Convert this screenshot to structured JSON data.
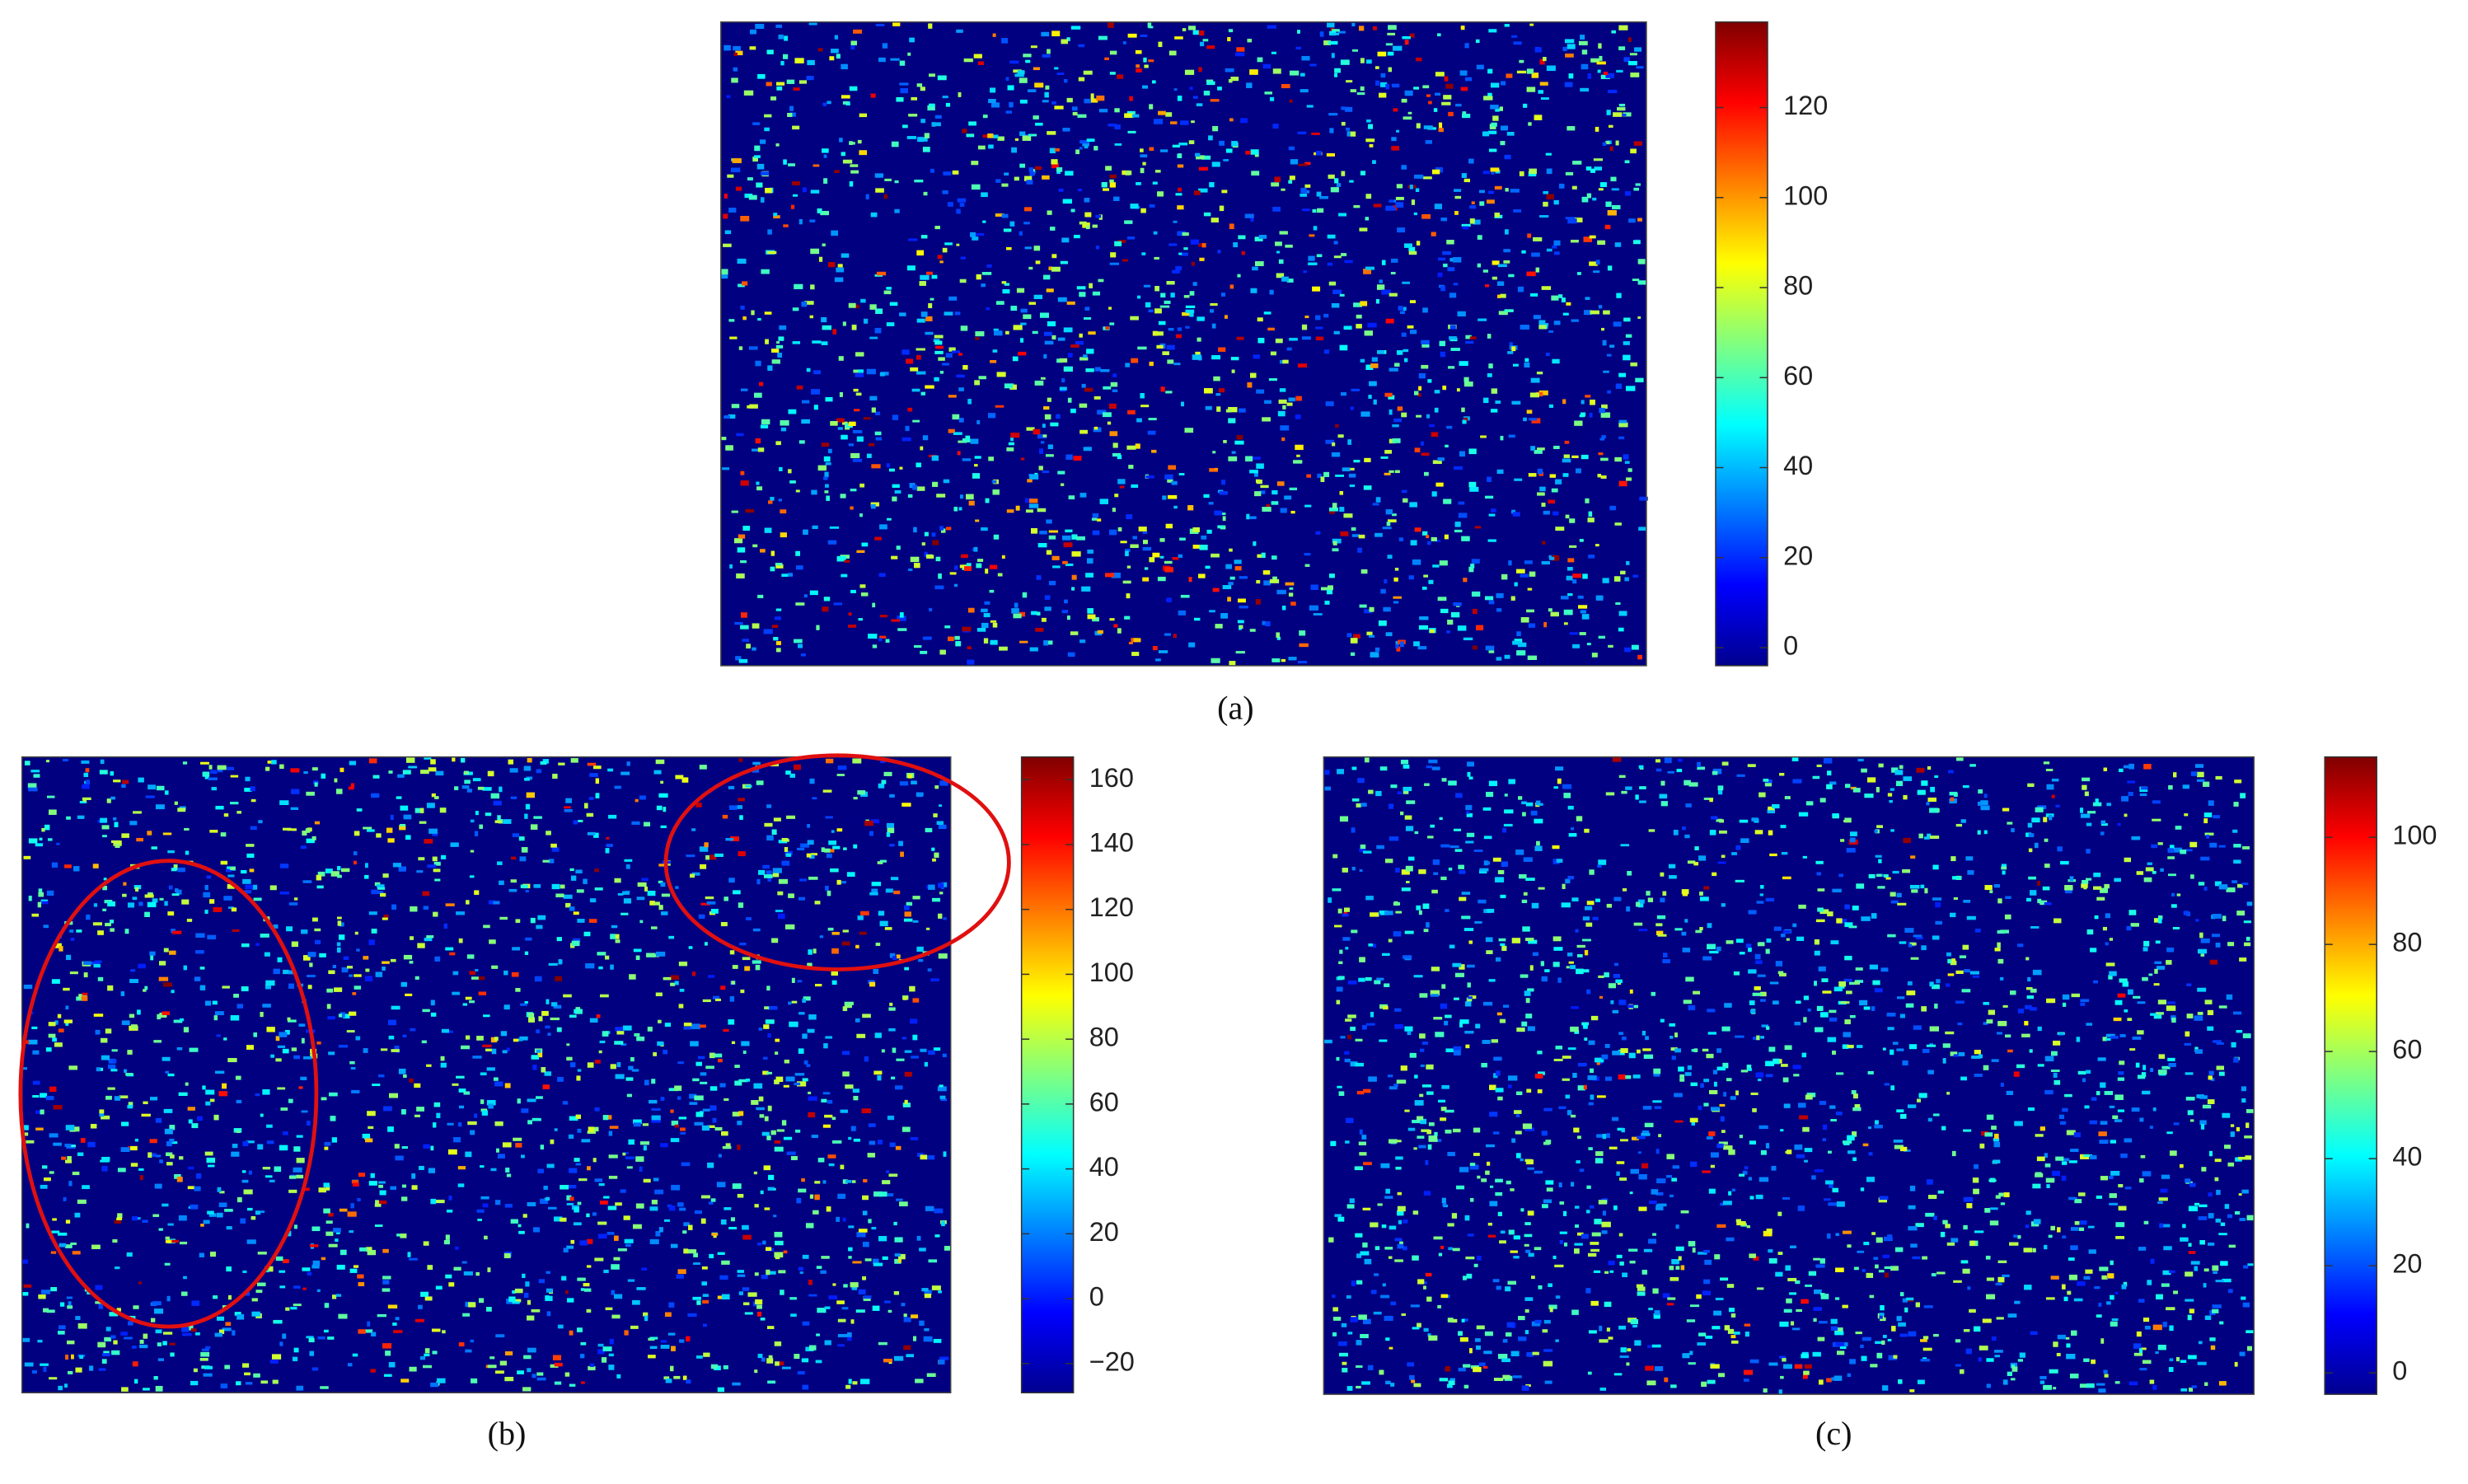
{
  "chart_data": [
    {
      "type": "heatmap",
      "caption": "(a)",
      "colormap": "jet",
      "clim": [
        -4,
        139
      ],
      "cticks": [
        0,
        20,
        40,
        60,
        80,
        100,
        120
      ]
    },
    {
      "type": "heatmap",
      "caption": "(b)",
      "colormap": "jet",
      "clim": [
        -29,
        167
      ],
      "cticks": [
        {
          "value": -20,
          "label": "−20"
        },
        0,
        20,
        40,
        60,
        80,
        100,
        120,
        140,
        160
      ]
    },
    {
      "type": "heatmap",
      "caption": "(c)",
      "colormap": "jet",
      "clim": [
        -4,
        115
      ],
      "cticks": [
        0,
        20,
        40,
        60,
        80,
        100
      ]
    }
  ]
}
